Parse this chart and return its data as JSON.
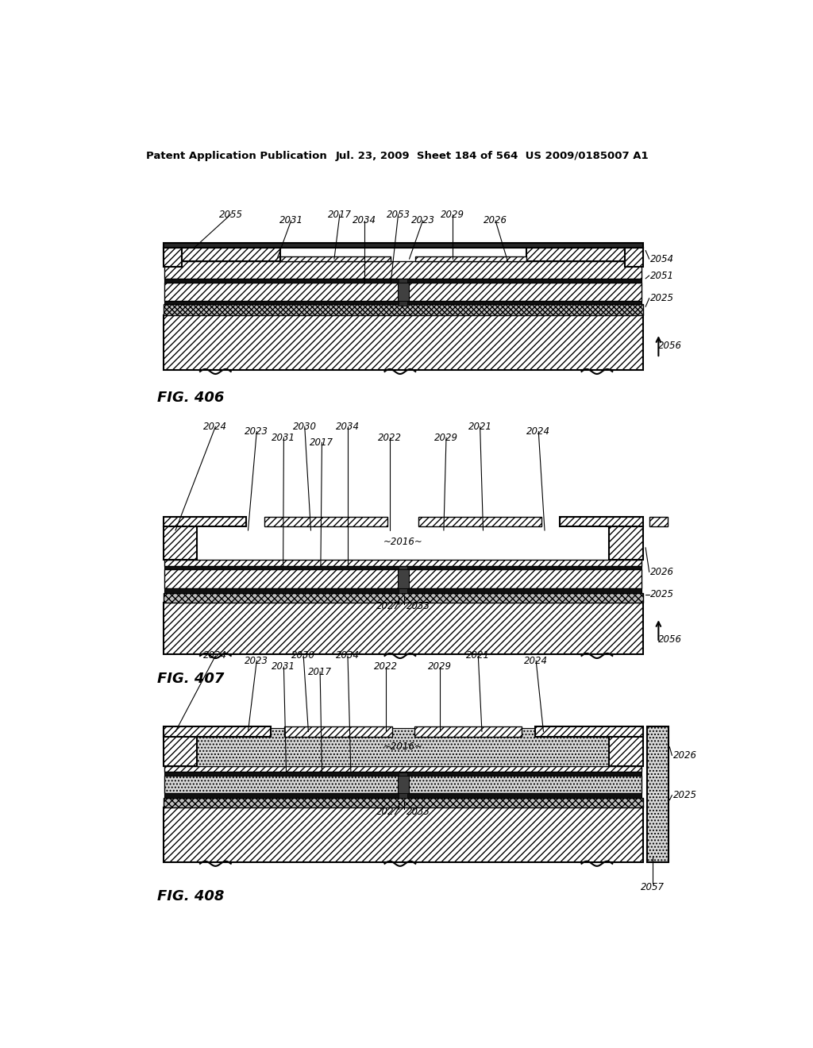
{
  "header_left": "Patent Application Publication",
  "header_right": "Jul. 23, 2009  Sheet 184 of 564  US 2009/0185007 A1",
  "fig406_label": "FIG. 406",
  "fig407_label": "FIG. 407",
  "fig408_label": "FIG. 408"
}
